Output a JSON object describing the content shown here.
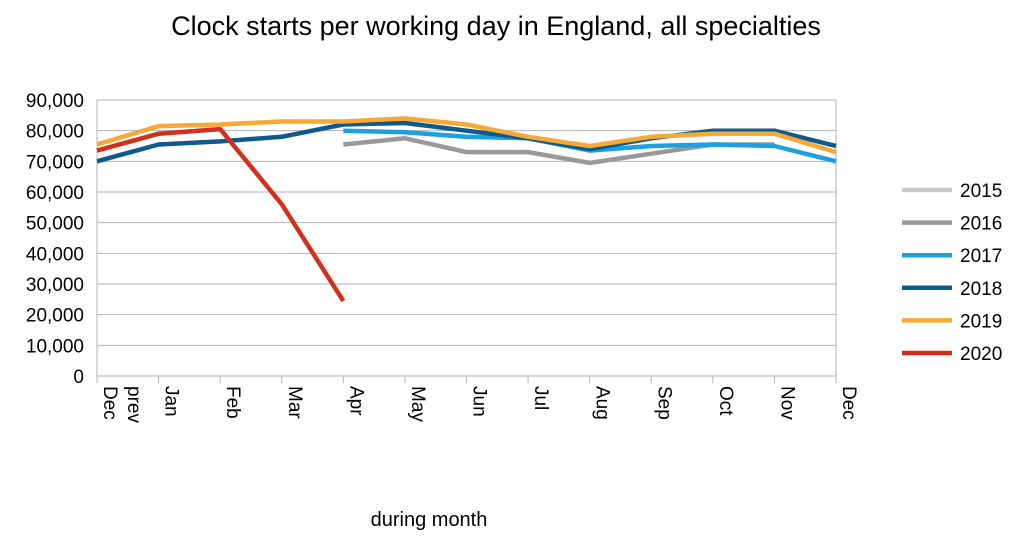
{
  "chart_data": {
    "type": "line",
    "title": "Clock starts per working day in England, all specialties",
    "xlabel": "during month",
    "ylabel": "",
    "ylim": [
      0,
      90000
    ],
    "yticks": [
      "0",
      "10,000",
      "20,000",
      "30,000",
      "40,000",
      "50,000",
      "60,000",
      "70,000",
      "80,000",
      "90,000"
    ],
    "categories": [
      "Dec prev",
      "Jan",
      "Feb",
      "Mar",
      "Apr",
      "May",
      "Jun",
      "Jul",
      "Aug",
      "Sep",
      "Oct",
      "Nov",
      "Dec"
    ],
    "grid": true,
    "legend_position": "right",
    "series": [
      {
        "name": "2015",
        "color": "#c8c8c8",
        "values": [
          null,
          null,
          null,
          null,
          null,
          null,
          null,
          null,
          null,
          null,
          null,
          null,
          null
        ]
      },
      {
        "name": "2016",
        "color": "#999999",
        "values": [
          null,
          null,
          null,
          null,
          75500,
          77500,
          73000,
          73000,
          69500,
          72500,
          75500,
          75500,
          null
        ]
      },
      {
        "name": "2017",
        "color": "#1ba1e2",
        "values": [
          null,
          null,
          null,
          null,
          80000,
          79500,
          78000,
          77500,
          73500,
          75000,
          75500,
          75000,
          70000
        ]
      },
      {
        "name": "2018",
        "color": "#0f5a8c",
        "values": [
          70000,
          75500,
          76500,
          78000,
          82000,
          82500,
          80000,
          77500,
          74000,
          77500,
          80000,
          80000,
          75000
        ]
      },
      {
        "name": "2019",
        "color": "#f7a938",
        "values": [
          75500,
          81500,
          82000,
          83000,
          83000,
          84000,
          82000,
          78000,
          75000,
          78000,
          79000,
          79000,
          73000
        ]
      },
      {
        "name": "2020",
        "color": "#d32f1f",
        "values": [
          73500,
          79000,
          80500,
          56000,
          24500,
          null,
          null,
          null,
          null,
          null,
          null,
          null,
          null
        ]
      }
    ]
  }
}
